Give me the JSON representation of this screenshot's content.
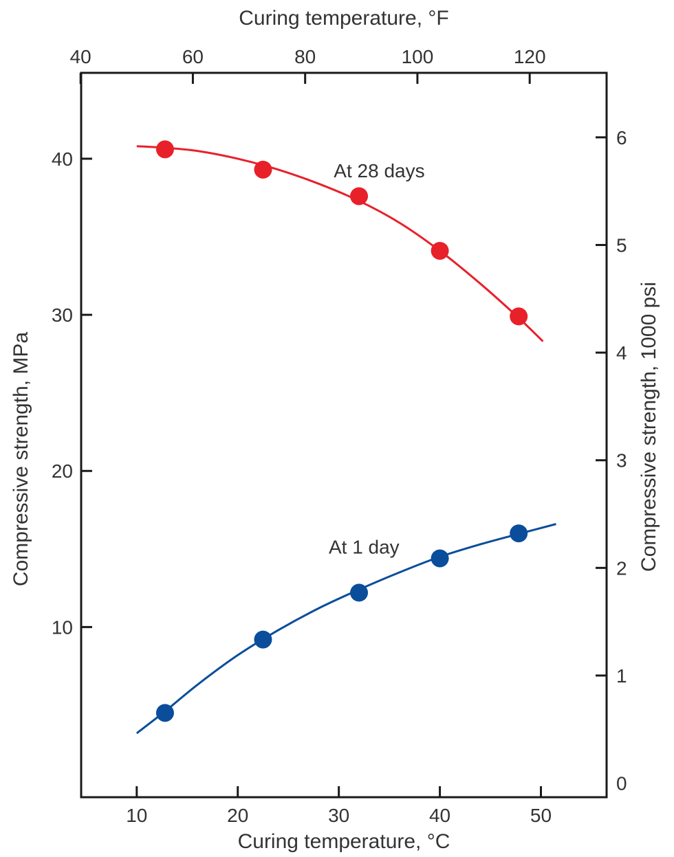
{
  "chart_data": {
    "type": "scatter",
    "x_axis_bottom": {
      "label": "Curing temperature, °C",
      "ticks": [
        10,
        20,
        30,
        40,
        50
      ],
      "range": [
        4.5,
        56.5
      ]
    },
    "x_axis_top": {
      "label": "Curing temperature, °F",
      "ticks": [
        40,
        60,
        80,
        100,
        120
      ]
    },
    "y_axis_left": {
      "label": "Compressive strength, MPa",
      "ticks": [
        10,
        20,
        30,
        40
      ],
      "range": [
        -0.9,
        45.5
      ]
    },
    "y_axis_right": {
      "label": "Compressive strength, 1000 psi",
      "ticks": [
        0,
        1,
        2,
        3,
        4,
        5,
        6
      ]
    },
    "grid": false,
    "series": [
      {
        "name": "At 28 days",
        "color": "#e8202a",
        "points": [
          {
            "x": 12.8,
            "y": 40.6
          },
          {
            "x": 22.5,
            "y": 39.3
          },
          {
            "x": 32.0,
            "y": 37.6
          },
          {
            "x": 40.0,
            "y": 34.1
          },
          {
            "x": 47.8,
            "y": 29.9
          }
        ],
        "curve": [
          {
            "x": 10.0,
            "y": 40.8
          },
          {
            "x": 12.8,
            "y": 40.7
          },
          {
            "x": 16.0,
            "y": 40.5
          },
          {
            "x": 20.0,
            "y": 40.0
          },
          {
            "x": 24.0,
            "y": 39.3
          },
          {
            "x": 28.0,
            "y": 38.4
          },
          {
            "x": 32.0,
            "y": 37.3
          },
          {
            "x": 36.0,
            "y": 35.9
          },
          {
            "x": 40.0,
            "y": 34.1
          },
          {
            "x": 44.0,
            "y": 32.0
          },
          {
            "x": 47.8,
            "y": 29.8
          },
          {
            "x": 50.2,
            "y": 28.3
          }
        ]
      },
      {
        "name": "At 1 day",
        "color": "#0a4d9b",
        "points": [
          {
            "x": 12.8,
            "y": 4.5
          },
          {
            "x": 22.5,
            "y": 9.2
          },
          {
            "x": 32.0,
            "y": 12.2
          },
          {
            "x": 40.0,
            "y": 14.4
          },
          {
            "x": 47.8,
            "y": 16.0
          }
        ],
        "curve": [
          {
            "x": 10.0,
            "y": 3.2
          },
          {
            "x": 12.8,
            "y": 4.6
          },
          {
            "x": 16.0,
            "y": 6.3
          },
          {
            "x": 20.0,
            "y": 8.2
          },
          {
            "x": 24.0,
            "y": 9.8
          },
          {
            "x": 28.0,
            "y": 11.2
          },
          {
            "x": 32.0,
            "y": 12.4
          },
          {
            "x": 36.0,
            "y": 13.5
          },
          {
            "x": 40.0,
            "y": 14.5
          },
          {
            "x": 44.0,
            "y": 15.3
          },
          {
            "x": 48.0,
            "y": 16.0
          },
          {
            "x": 51.5,
            "y": 16.6
          }
        ]
      }
    ],
    "annotations": [
      {
        "text": "At 28 days",
        "x": 29.5,
        "y": 38.8
      },
      {
        "text": "At 1 day",
        "x": 29.0,
        "y": 14.7
      }
    ]
  }
}
